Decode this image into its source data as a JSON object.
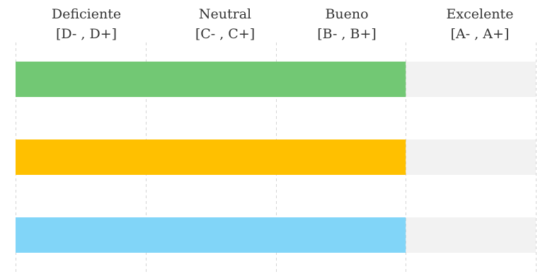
{
  "chart_data": {
    "type": "bar",
    "orientation": "horizontal",
    "scale_categories": [
      {
        "name": "Deficiente",
        "range": "[D- , D+]"
      },
      {
        "name": "Neutral",
        "range": "[C- , C+]"
      },
      {
        "name": "Bueno",
        "range": "[B- , B+]"
      },
      {
        "name": "Excelente",
        "range": "[A- , A+]"
      }
    ],
    "xlim": [
      0,
      4
    ],
    "grid": "vertical dashed",
    "bars": [
      {
        "value": 3,
        "color": "#72c874"
      },
      {
        "value": 3,
        "color": "#ffc000"
      },
      {
        "value": 3,
        "color": "#81d5f8"
      }
    ],
    "track_color": "#f2f2f2"
  }
}
